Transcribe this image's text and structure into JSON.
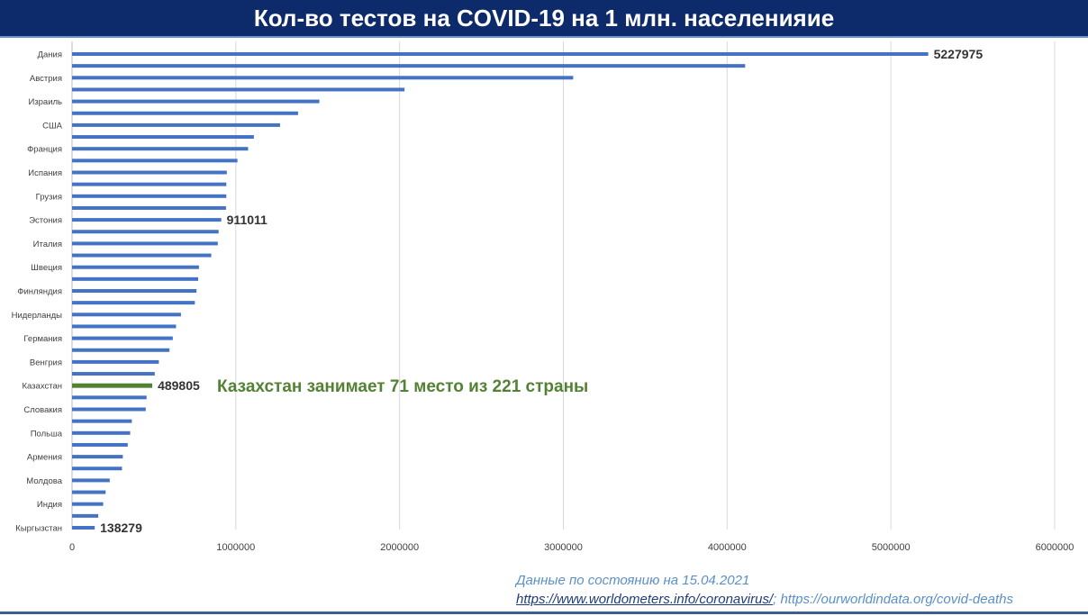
{
  "chart_data": {
    "type": "bar",
    "orientation": "horizontal",
    "title": "Кол-во тестов на COVID-19 на 1 млн. населенияие",
    "categories": [
      "Дания",
      "",
      "Австрия",
      "",
      "Израиль",
      "",
      "США",
      "",
      "Франция",
      "",
      "Испания",
      "",
      "Грузия",
      "",
      "Эстония",
      "",
      "Италия",
      "",
      "Швеция",
      "",
      "Финляндия",
      "",
      "Нидерланды",
      "",
      "Германия",
      "",
      "Венгрия",
      "",
      "Казахстан",
      "",
      "Словакия",
      "",
      "Польша",
      "",
      "Армения",
      "",
      "Молдова",
      "",
      "Индия",
      "",
      "Кыргызстан"
    ],
    "values": [
      5227975,
      4110000,
      3060000,
      2030000,
      1510000,
      1380000,
      1270000,
      1110000,
      1075000,
      1010000,
      945000,
      942000,
      942000,
      940000,
      911011,
      895000,
      890000,
      850000,
      775000,
      770000,
      760000,
      750000,
      665000,
      635000,
      615000,
      595000,
      530000,
      505000,
      489805,
      455000,
      450000,
      365000,
      355000,
      340000,
      310000,
      305000,
      230000,
      205000,
      190000,
      160000,
      138279
    ],
    "highlight": {
      "category": "Казахстан",
      "color": "#548235"
    },
    "bar_color": "#4472c4",
    "data_labels": [
      {
        "category": "Дания",
        "text": "5227975"
      },
      {
        "category": "Эстония",
        "text": "911011"
      },
      {
        "category": "Казахстан",
        "text": "489805"
      },
      {
        "category": "Кыргызстан",
        "text": "138279"
      }
    ],
    "annotation": {
      "text": "Казахстан занимает 71 место из 221 страны",
      "color": "#548235"
    },
    "xlim": [
      0,
      6000000
    ],
    "xticks": [
      "0",
      "1000000",
      "2000000",
      "3000000",
      "4000000",
      "5000000",
      "6000000"
    ],
    "grid": "vertical"
  },
  "footer": {
    "date_note": "Данные по состоянию на 15.04.2021",
    "source1": "https://www.worldometers.info/coronavirus/",
    "separator": "; ",
    "source2": "https://ourworldindata.org/covid-deaths"
  }
}
